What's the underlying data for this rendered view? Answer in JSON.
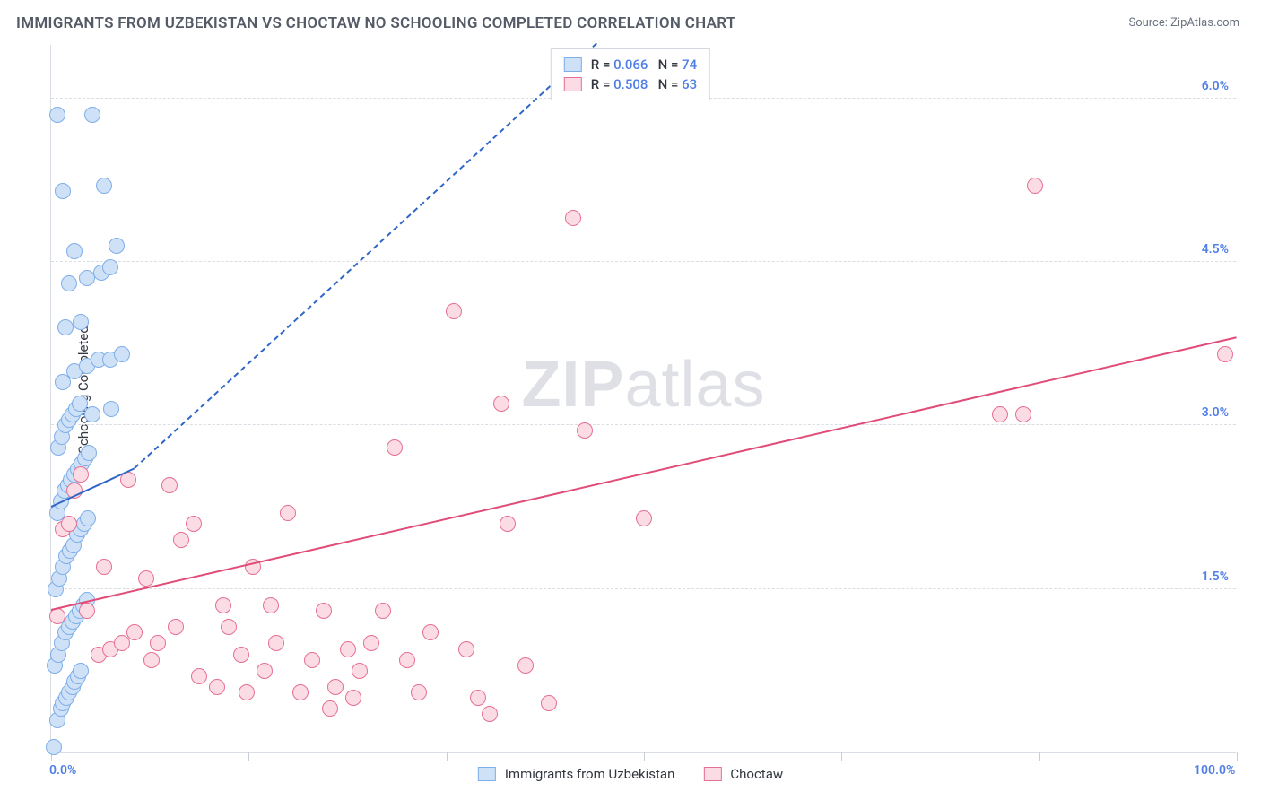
{
  "title": "IMMIGRANTS FROM UZBEKISTAN VS CHOCTAW NO SCHOOLING COMPLETED CORRELATION CHART",
  "source": "Source: ZipAtlas.com",
  "ylabel": "No Schooling Completed",
  "watermark_bold": "ZIP",
  "watermark_rest": "atlas",
  "chart": {
    "type": "scatter",
    "xlim": [
      0,
      100
    ],
    "ylim": [
      0,
      6.5
    ],
    "xticks": [
      0,
      16.67,
      33.33,
      50,
      66.67,
      83.33,
      100
    ],
    "xtick_labels": {
      "0": "0.0%",
      "100": "100.0%"
    },
    "yticks": [
      1.5,
      3.0,
      4.5,
      6.0
    ],
    "ytick_labels": [
      "1.5%",
      "3.0%",
      "4.5%",
      "6.0%"
    ],
    "background_color": "#ffffff",
    "grid_color": "#d9dde4",
    "marker_radius": 9,
    "marker_stroke_width": 1.5,
    "series": [
      {
        "name": "Immigrants from Uzbekistan",
        "fill": "#cfe1f7",
        "stroke": "#7eaee9",
        "R": "0.066",
        "N": "74",
        "trend": {
          "x1": 0,
          "y1": 2.25,
          "x2": 7,
          "y2": 2.6,
          "solid": true,
          "dash_to_x": 46,
          "dash_to_y": 6.5,
          "color": "#2f66c8"
        },
        "points": [
          [
            0.2,
            0.05
          ],
          [
            0.5,
            0.3
          ],
          [
            0.8,
            0.4
          ],
          [
            1.0,
            0.45
          ],
          [
            1.3,
            0.5
          ],
          [
            1.5,
            0.55
          ],
          [
            1.8,
            0.6
          ],
          [
            2.0,
            0.65
          ],
          [
            2.3,
            0.7
          ],
          [
            2.5,
            0.75
          ],
          [
            0.3,
            0.8
          ],
          [
            0.6,
            0.9
          ],
          [
            0.9,
            1.0
          ],
          [
            1.2,
            1.1
          ],
          [
            1.5,
            1.15
          ],
          [
            1.8,
            1.2
          ],
          [
            2.1,
            1.25
          ],
          [
            2.4,
            1.3
          ],
          [
            2.7,
            1.35
          ],
          [
            3.0,
            1.4
          ],
          [
            0.4,
            1.5
          ],
          [
            0.7,
            1.6
          ],
          [
            1.0,
            1.7
          ],
          [
            1.3,
            1.8
          ],
          [
            1.6,
            1.85
          ],
          [
            1.9,
            1.9
          ],
          [
            2.2,
            2.0
          ],
          [
            2.5,
            2.05
          ],
          [
            2.8,
            2.1
          ],
          [
            3.1,
            2.15
          ],
          [
            0.5,
            2.2
          ],
          [
            0.8,
            2.3
          ],
          [
            1.1,
            2.4
          ],
          [
            1.4,
            2.45
          ],
          [
            1.7,
            2.5
          ],
          [
            2.0,
            2.55
          ],
          [
            2.3,
            2.6
          ],
          [
            2.6,
            2.65
          ],
          [
            2.9,
            2.7
          ],
          [
            3.2,
            2.75
          ],
          [
            0.6,
            2.8
          ],
          [
            0.9,
            2.9
          ],
          [
            1.2,
            3.0
          ],
          [
            1.5,
            3.05
          ],
          [
            1.8,
            3.1
          ],
          [
            2.1,
            3.15
          ],
          [
            2.4,
            3.2
          ],
          [
            3.5,
            3.1
          ],
          [
            1.0,
            3.4
          ],
          [
            2.0,
            3.5
          ],
          [
            3.0,
            3.55
          ],
          [
            4.0,
            3.6
          ],
          [
            5.0,
            3.6
          ],
          [
            6.0,
            3.65
          ],
          [
            1.2,
            3.9
          ],
          [
            2.5,
            3.95
          ],
          [
            5.1,
            3.15
          ],
          [
            1.5,
            4.3
          ],
          [
            3.0,
            4.35
          ],
          [
            4.2,
            4.4
          ],
          [
            5.0,
            4.45
          ],
          [
            2.0,
            4.6
          ],
          [
            5.5,
            4.65
          ],
          [
            1.0,
            5.15
          ],
          [
            4.5,
            5.2
          ],
          [
            0.5,
            5.85
          ],
          [
            3.5,
            5.85
          ]
        ]
      },
      {
        "name": "Choctaw",
        "fill": "#fbdce4",
        "stroke": "#e66f93",
        "R": "0.508",
        "N": "63",
        "trend": {
          "x1": 0,
          "y1": 1.3,
          "x2": 100,
          "y2": 3.8,
          "solid": true,
          "color": "#e14b77"
        },
        "points": [
          [
            0.5,
            1.25
          ],
          [
            1.0,
            2.05
          ],
          [
            1.5,
            2.1
          ],
          [
            2.0,
            2.4
          ],
          [
            2.5,
            2.55
          ],
          [
            3.0,
            1.3
          ],
          [
            4.0,
            0.9
          ],
          [
            5.0,
            0.95
          ],
          [
            6.0,
            1.0
          ],
          [
            7.0,
            1.1
          ],
          [
            8.0,
            1.6
          ],
          [
            9.0,
            1.0
          ],
          [
            10.0,
            2.45
          ],
          [
            11.0,
            1.95
          ],
          [
            12.0,
            2.1
          ],
          [
            4.5,
            1.7
          ],
          [
            6.5,
            2.5
          ],
          [
            8.5,
            0.85
          ],
          [
            10.5,
            1.15
          ],
          [
            12.5,
            0.7
          ],
          [
            14.0,
            0.6
          ],
          [
            15.0,
            1.15
          ],
          [
            16.0,
            0.9
          ],
          [
            17.0,
            1.7
          ],
          [
            18.0,
            0.75
          ],
          [
            19.0,
            1.0
          ],
          [
            20.0,
            2.2
          ],
          [
            21.0,
            0.55
          ],
          [
            16.5,
            0.55
          ],
          [
            14.5,
            1.35
          ],
          [
            18.5,
            1.35
          ],
          [
            22.0,
            0.85
          ],
          [
            23.0,
            1.3
          ],
          [
            24.0,
            0.6
          ],
          [
            25.0,
            0.95
          ],
          [
            26.0,
            0.75
          ],
          [
            27.0,
            1.0
          ],
          [
            28.0,
            1.3
          ],
          [
            23.5,
            0.4
          ],
          [
            25.5,
            0.5
          ],
          [
            29.0,
            2.8
          ],
          [
            30.0,
            0.85
          ],
          [
            31.0,
            0.55
          ],
          [
            32.0,
            1.1
          ],
          [
            34.0,
            4.05
          ],
          [
            35.0,
            0.95
          ],
          [
            36.0,
            0.5
          ],
          [
            37.0,
            0.35
          ],
          [
            38.0,
            3.2
          ],
          [
            40.0,
            0.8
          ],
          [
            38.5,
            2.1
          ],
          [
            42.0,
            0.45
          ],
          [
            44.0,
            4.9
          ],
          [
            45.0,
            2.95
          ],
          [
            50.0,
            2.15
          ],
          [
            80.0,
            3.1
          ],
          [
            82.0,
            3.1
          ],
          [
            83.0,
            5.2
          ],
          [
            99.0,
            3.65
          ]
        ]
      }
    ]
  },
  "legend_bottom": [
    {
      "label": "Immigrants from Uzbekistan",
      "fill": "#cfe1f7",
      "stroke": "#7eaee9"
    },
    {
      "label": "Choctaw",
      "fill": "#fbdce4",
      "stroke": "#e66f93"
    }
  ]
}
